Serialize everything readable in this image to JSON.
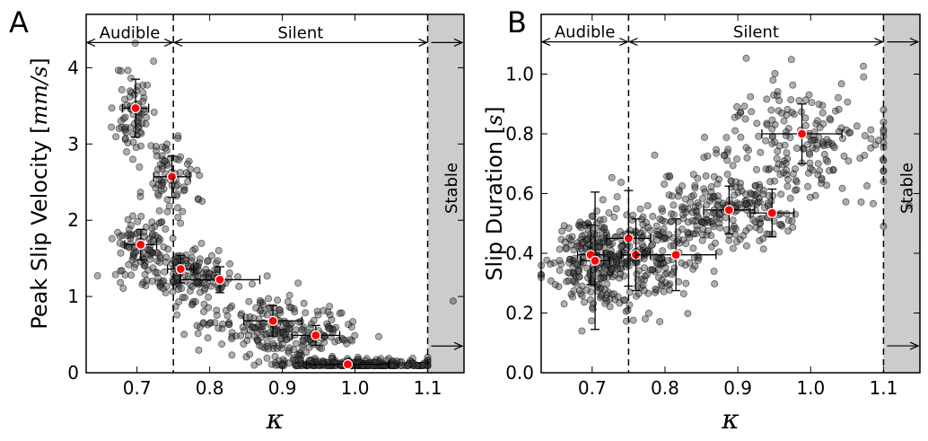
{
  "chart_data": [
    {
      "type": "scatter",
      "panel_label": "A",
      "xlabel": "κ",
      "ylabel": "Peak Slip Velocity [",
      "ylabel_unit": "mm/s",
      "ylabel_close": "]",
      "xlim": [
        0.63,
        1.15
      ],
      "ylim": [
        0,
        4.7
      ],
      "xticks": [
        0.7,
        0.8,
        0.9,
        1.0,
        1.1
      ],
      "xtick_labels": [
        "0.7",
        "0.8",
        "0.9",
        "1.0",
        "1.1"
      ],
      "yticks": [
        0,
        1,
        2,
        3,
        4
      ],
      "ytick_labels": [
        "0",
        "1",
        "2",
        "3",
        "4"
      ],
      "grid": false,
      "regions": {
        "boundaries": [
          0.75,
          1.1
        ],
        "stable_shade": [
          1.1,
          1.15
        ],
        "audible_label": "Audible",
        "silent_label": "Silent",
        "stable_label": "Stable",
        "arrow_y": 4.33,
        "stable_arrow_y": 0.35
      },
      "scatter_clusters": [
        {
          "cx": 0.695,
          "cy": 3.45,
          "sx": 0.012,
          "sy": 0.32,
          "n": 70
        },
        {
          "cx": 0.745,
          "cy": 2.55,
          "sx": 0.018,
          "sy": 0.28,
          "n": 75
        },
        {
          "cx": 0.705,
          "cy": 1.65,
          "sx": 0.022,
          "sy": 0.22,
          "n": 95
        },
        {
          "cx": 0.775,
          "cy": 1.3,
          "sx": 0.03,
          "sy": 0.18,
          "n": 150
        },
        {
          "cx": 0.87,
          "cy": 0.65,
          "sx": 0.04,
          "sy": 0.2,
          "n": 150
        },
        {
          "cx": 0.94,
          "cy": 0.45,
          "sx": 0.03,
          "sy": 0.18,
          "n": 90
        },
        {
          "cx": 1.0,
          "cy": 0.1,
          "sx": 0.055,
          "sy": 0.05,
          "n": 260
        }
      ],
      "binned_means": [
        {
          "x": 0.698,
          "y": 3.47,
          "xerr": 0.018,
          "yerr": 0.38
        },
        {
          "x": 0.748,
          "y": 2.57,
          "xerr": 0.025,
          "yerr": 0.27
        },
        {
          "x": 0.705,
          "y": 1.68,
          "xerr": 0.022,
          "yerr": 0.2
        },
        {
          "x": 0.76,
          "y": 1.36,
          "xerr": 0.018,
          "yerr": 0.18
        },
        {
          "x": 0.814,
          "y": 1.22,
          "xerr": 0.055,
          "yerr": 0.17
        },
        {
          "x": 0.887,
          "y": 0.68,
          "xerr": 0.04,
          "yerr": 0.2
        },
        {
          "x": 0.946,
          "y": 0.49,
          "xerr": 0.033,
          "yerr": 0.13
        },
        {
          "x": 0.99,
          "y": 0.11,
          "xerr": 0.057,
          "yerr": 0.04
        }
      ],
      "extra_points": [
        {
          "x": 1.135,
          "y": 0.94
        }
      ]
    },
    {
      "type": "scatter",
      "panel_label": "B",
      "xlabel": "κ",
      "ylabel": "Slip Duration [",
      "ylabel_unit": "s",
      "ylabel_close": "]",
      "xlim": [
        0.63,
        1.15
      ],
      "ylim": [
        0,
        1.2
      ],
      "xticks": [
        0.7,
        0.8,
        0.9,
        1.0,
        1.1
      ],
      "xtick_labels": [
        "0.7",
        "0.8",
        "0.9",
        "1.0",
        "1.1"
      ],
      "yticks": [
        0,
        0.2,
        0.4,
        0.6,
        0.8,
        1.0
      ],
      "ytick_labels": [
        "0.0",
        "0.2",
        "0.4",
        "0.6",
        "0.8",
        "1.0"
      ],
      "grid": false,
      "regions": {
        "boundaries": [
          0.75,
          1.1
        ],
        "stable_shade": [
          1.1,
          1.15
        ],
        "audible_label": "Audible",
        "silent_label": "Silent",
        "stable_label": "Stable",
        "arrow_y": 1.108,
        "stable_arrow_y": 0.09
      },
      "scatter_clusters": [
        {
          "cx": 0.71,
          "cy": 0.38,
          "sx": 0.035,
          "sy": 0.08,
          "n": 330
        },
        {
          "cx": 0.8,
          "cy": 0.4,
          "sx": 0.03,
          "sy": 0.09,
          "n": 120
        },
        {
          "cx": 0.89,
          "cy": 0.55,
          "sx": 0.05,
          "sy": 0.07,
          "n": 200
        },
        {
          "cx": 0.99,
          "cy": 0.77,
          "sx": 0.06,
          "sy": 0.1,
          "n": 200
        }
      ],
      "binned_means": [
        {
          "x": 0.698,
          "y": 0.395,
          "xerr": 0.018,
          "yerr": 0.1
        },
        {
          "x": 0.704,
          "y": 0.375,
          "xerr": 0.02,
          "yerr": 0.23
        },
        {
          "x": 0.75,
          "y": 0.45,
          "xerr": 0.03,
          "yerr": 0.16
        },
        {
          "x": 0.76,
          "y": 0.395,
          "xerr": 0.02,
          "yerr": 0.12
        },
        {
          "x": 0.815,
          "y": 0.395,
          "xerr": 0.055,
          "yerr": 0.12
        },
        {
          "x": 0.888,
          "y": 0.545,
          "xerr": 0.035,
          "yerr": 0.08
        },
        {
          "x": 0.947,
          "y": 0.535,
          "xerr": 0.03,
          "yerr": 0.08
        },
        {
          "x": 0.988,
          "y": 0.8,
          "xerr": 0.055,
          "yerr": 0.1
        }
      ],
      "extra_points": [
        {
          "x": 1.135,
          "y": 0.56
        }
      ]
    }
  ]
}
